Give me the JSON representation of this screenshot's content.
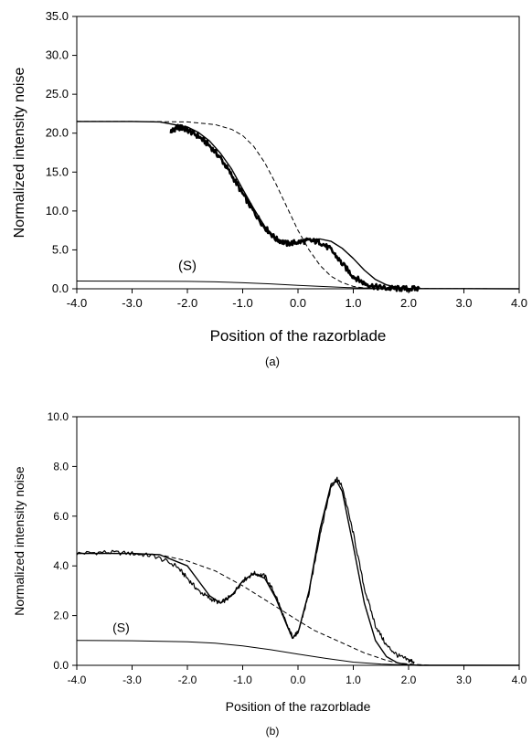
{
  "chart_data": [
    {
      "type": "line",
      "panel_label": "(a)",
      "xlabel": "Position of the razorblade",
      "ylabel": "Normalized intensity noise",
      "xlim": [
        -4.0,
        4.0
      ],
      "ylim": [
        0,
        35.0
      ],
      "x_ticks": [
        "-4.0",
        "-3.0",
        "-2.0",
        "-1.0",
        "0.0",
        "1.0",
        "2.0",
        "3.0",
        "4.0"
      ],
      "y_ticks": [
        "0.0",
        "5.0",
        "10.0",
        "15.0",
        "20.0",
        "25.0",
        "30.0",
        "35.0"
      ],
      "grid": false,
      "legend": "none",
      "annotations": [
        {
          "text": "(S)",
          "x": -2.0,
          "y": 2.4
        }
      ],
      "series": [
        {
          "style": "measured-noisy-thick",
          "x": [
            -2.3,
            -2.2,
            -2.1,
            -2.0,
            -1.8,
            -1.6,
            -1.4,
            -1.2,
            -1.0,
            -0.8,
            -0.6,
            -0.4,
            -0.2,
            0.0,
            0.2,
            0.4,
            0.6,
            0.8,
            1.0,
            1.2,
            1.4,
            1.6,
            1.8,
            2.0,
            2.2
          ],
          "y": [
            20.2,
            20.7,
            20.7,
            20.4,
            19.6,
            18.4,
            16.8,
            14.6,
            12.2,
            9.9,
            7.9,
            6.4,
            5.8,
            6.0,
            6.2,
            6.0,
            5.0,
            3.2,
            1.6,
            0.7,
            0.25,
            0.08,
            0.02,
            0.0,
            0.0
          ]
        },
        {
          "style": "theory-solid",
          "x": [
            -4.0,
            -3.0,
            -2.5,
            -2.0,
            -1.8,
            -1.6,
            -1.4,
            -1.2,
            -1.0,
            -0.8,
            -0.6,
            -0.4,
            -0.2,
            0.0,
            0.2,
            0.4,
            0.6,
            0.8,
            1.0,
            1.2,
            1.4,
            1.6,
            1.8,
            2.0,
            4.0
          ],
          "y": [
            21.5,
            21.5,
            21.45,
            20.8,
            20.1,
            19.0,
            17.4,
            15.4,
            12.8,
            10.3,
            8.0,
            6.5,
            5.9,
            6.0,
            6.3,
            6.4,
            6.1,
            5.2,
            3.9,
            2.4,
            1.2,
            0.5,
            0.15,
            0.03,
            0.0
          ]
        },
        {
          "style": "theory-dashed",
          "x": [
            -4.0,
            -3.0,
            -2.0,
            -1.5,
            -1.2,
            -1.0,
            -0.8,
            -0.6,
            -0.4,
            -0.2,
            0.0,
            0.2,
            0.4,
            0.6,
            0.8,
            1.0,
            1.2,
            1.4,
            4.0
          ],
          "y": [
            21.5,
            21.5,
            21.45,
            21.1,
            20.5,
            19.7,
            18.3,
            16.2,
            13.5,
            10.5,
            7.5,
            5.0,
            3.0,
            1.6,
            0.8,
            0.3,
            0.1,
            0.03,
            0.0
          ]
        },
        {
          "style": "reference-solid",
          "label": "(S)",
          "x": [
            -4.0,
            -3.0,
            -2.0,
            -1.5,
            -1.0,
            -0.5,
            0.0,
            0.5,
            1.0,
            1.5,
            2.0,
            4.0
          ],
          "y": [
            1.0,
            0.99,
            0.95,
            0.89,
            0.78,
            0.63,
            0.45,
            0.28,
            0.13,
            0.05,
            0.01,
            0.0
          ]
        }
      ]
    },
    {
      "type": "line",
      "panel_label": "(b)",
      "xlabel": "Position of the razorblade",
      "ylabel": "Normalized intensity noise",
      "xlim": [
        -4.0,
        4.0
      ],
      "ylim": [
        0,
        10.0
      ],
      "x_ticks": [
        "-4.0",
        "-3.0",
        "-2.0",
        "-1.0",
        "0.0",
        "1.0",
        "2.0",
        "3.0",
        "4.0"
      ],
      "y_ticks": [
        "0.0",
        "2.0",
        "4.0",
        "6.0",
        "8.0",
        "10.0"
      ],
      "grid": false,
      "legend": "none",
      "annotations": [
        {
          "text": "(S)",
          "x": -3.2,
          "y": 1.35
        }
      ],
      "series": [
        {
          "style": "measured-noisy-thin",
          "x": [
            -4.0,
            -3.5,
            -3.0,
            -2.6,
            -2.2,
            -2.0,
            -1.8,
            -1.6,
            -1.4,
            -1.2,
            -1.0,
            -0.8,
            -0.6,
            -0.4,
            -0.2,
            -0.1,
            0.0,
            0.2,
            0.4,
            0.6,
            0.7,
            0.8,
            1.0,
            1.2,
            1.4,
            1.6,
            1.8,
            2.0,
            2.1
          ],
          "y": [
            4.5,
            4.55,
            4.5,
            4.4,
            4.0,
            3.5,
            3.0,
            2.7,
            2.5,
            2.8,
            3.4,
            3.7,
            3.6,
            2.8,
            1.6,
            1.15,
            1.3,
            2.9,
            5.3,
            7.2,
            7.5,
            7.2,
            5.3,
            3.1,
            1.6,
            0.8,
            0.4,
            0.2,
            0.15
          ]
        },
        {
          "style": "theory-solid",
          "x": [
            -4.0,
            -3.0,
            -2.5,
            -2.0,
            -1.8,
            -1.6,
            -1.4,
            -1.2,
            -1.0,
            -0.8,
            -0.6,
            -0.4,
            -0.2,
            -0.1,
            0.0,
            0.2,
            0.4,
            0.6,
            0.7,
            0.8,
            1.0,
            1.2,
            1.4,
            1.6,
            1.8,
            2.0,
            2.2,
            4.0
          ],
          "y": [
            4.5,
            4.5,
            4.45,
            4.0,
            3.4,
            2.8,
            2.5,
            2.8,
            3.4,
            3.7,
            3.5,
            2.7,
            1.6,
            1.1,
            1.3,
            3.0,
            5.5,
            7.3,
            7.4,
            7.0,
            4.8,
            2.5,
            1.0,
            0.35,
            0.1,
            0.02,
            0.0,
            0.0
          ]
        },
        {
          "style": "theory-dashed",
          "x": [
            -4.0,
            -3.0,
            -2.5,
            -2.0,
            -1.5,
            -1.0,
            -0.5,
            0.0,
            0.3,
            0.5,
            0.7,
            0.9,
            1.0,
            1.2,
            1.4,
            1.6,
            1.8,
            2.0,
            2.4,
            4.0
          ],
          "y": [
            4.5,
            4.5,
            4.45,
            4.2,
            3.8,
            3.2,
            2.5,
            1.8,
            1.4,
            1.2,
            1.0,
            0.8,
            0.7,
            0.5,
            0.35,
            0.2,
            0.1,
            0.05,
            0.0,
            0.0
          ]
        },
        {
          "style": "reference-solid",
          "label": "(S)",
          "x": [
            -4.0,
            -3.0,
            -2.0,
            -1.5,
            -1.0,
            -0.5,
            0.0,
            0.5,
            1.0,
            1.5,
            2.0,
            4.0
          ],
          "y": [
            1.0,
            0.99,
            0.95,
            0.89,
            0.78,
            0.63,
            0.45,
            0.28,
            0.13,
            0.05,
            0.01,
            0.0
          ]
        }
      ]
    }
  ]
}
